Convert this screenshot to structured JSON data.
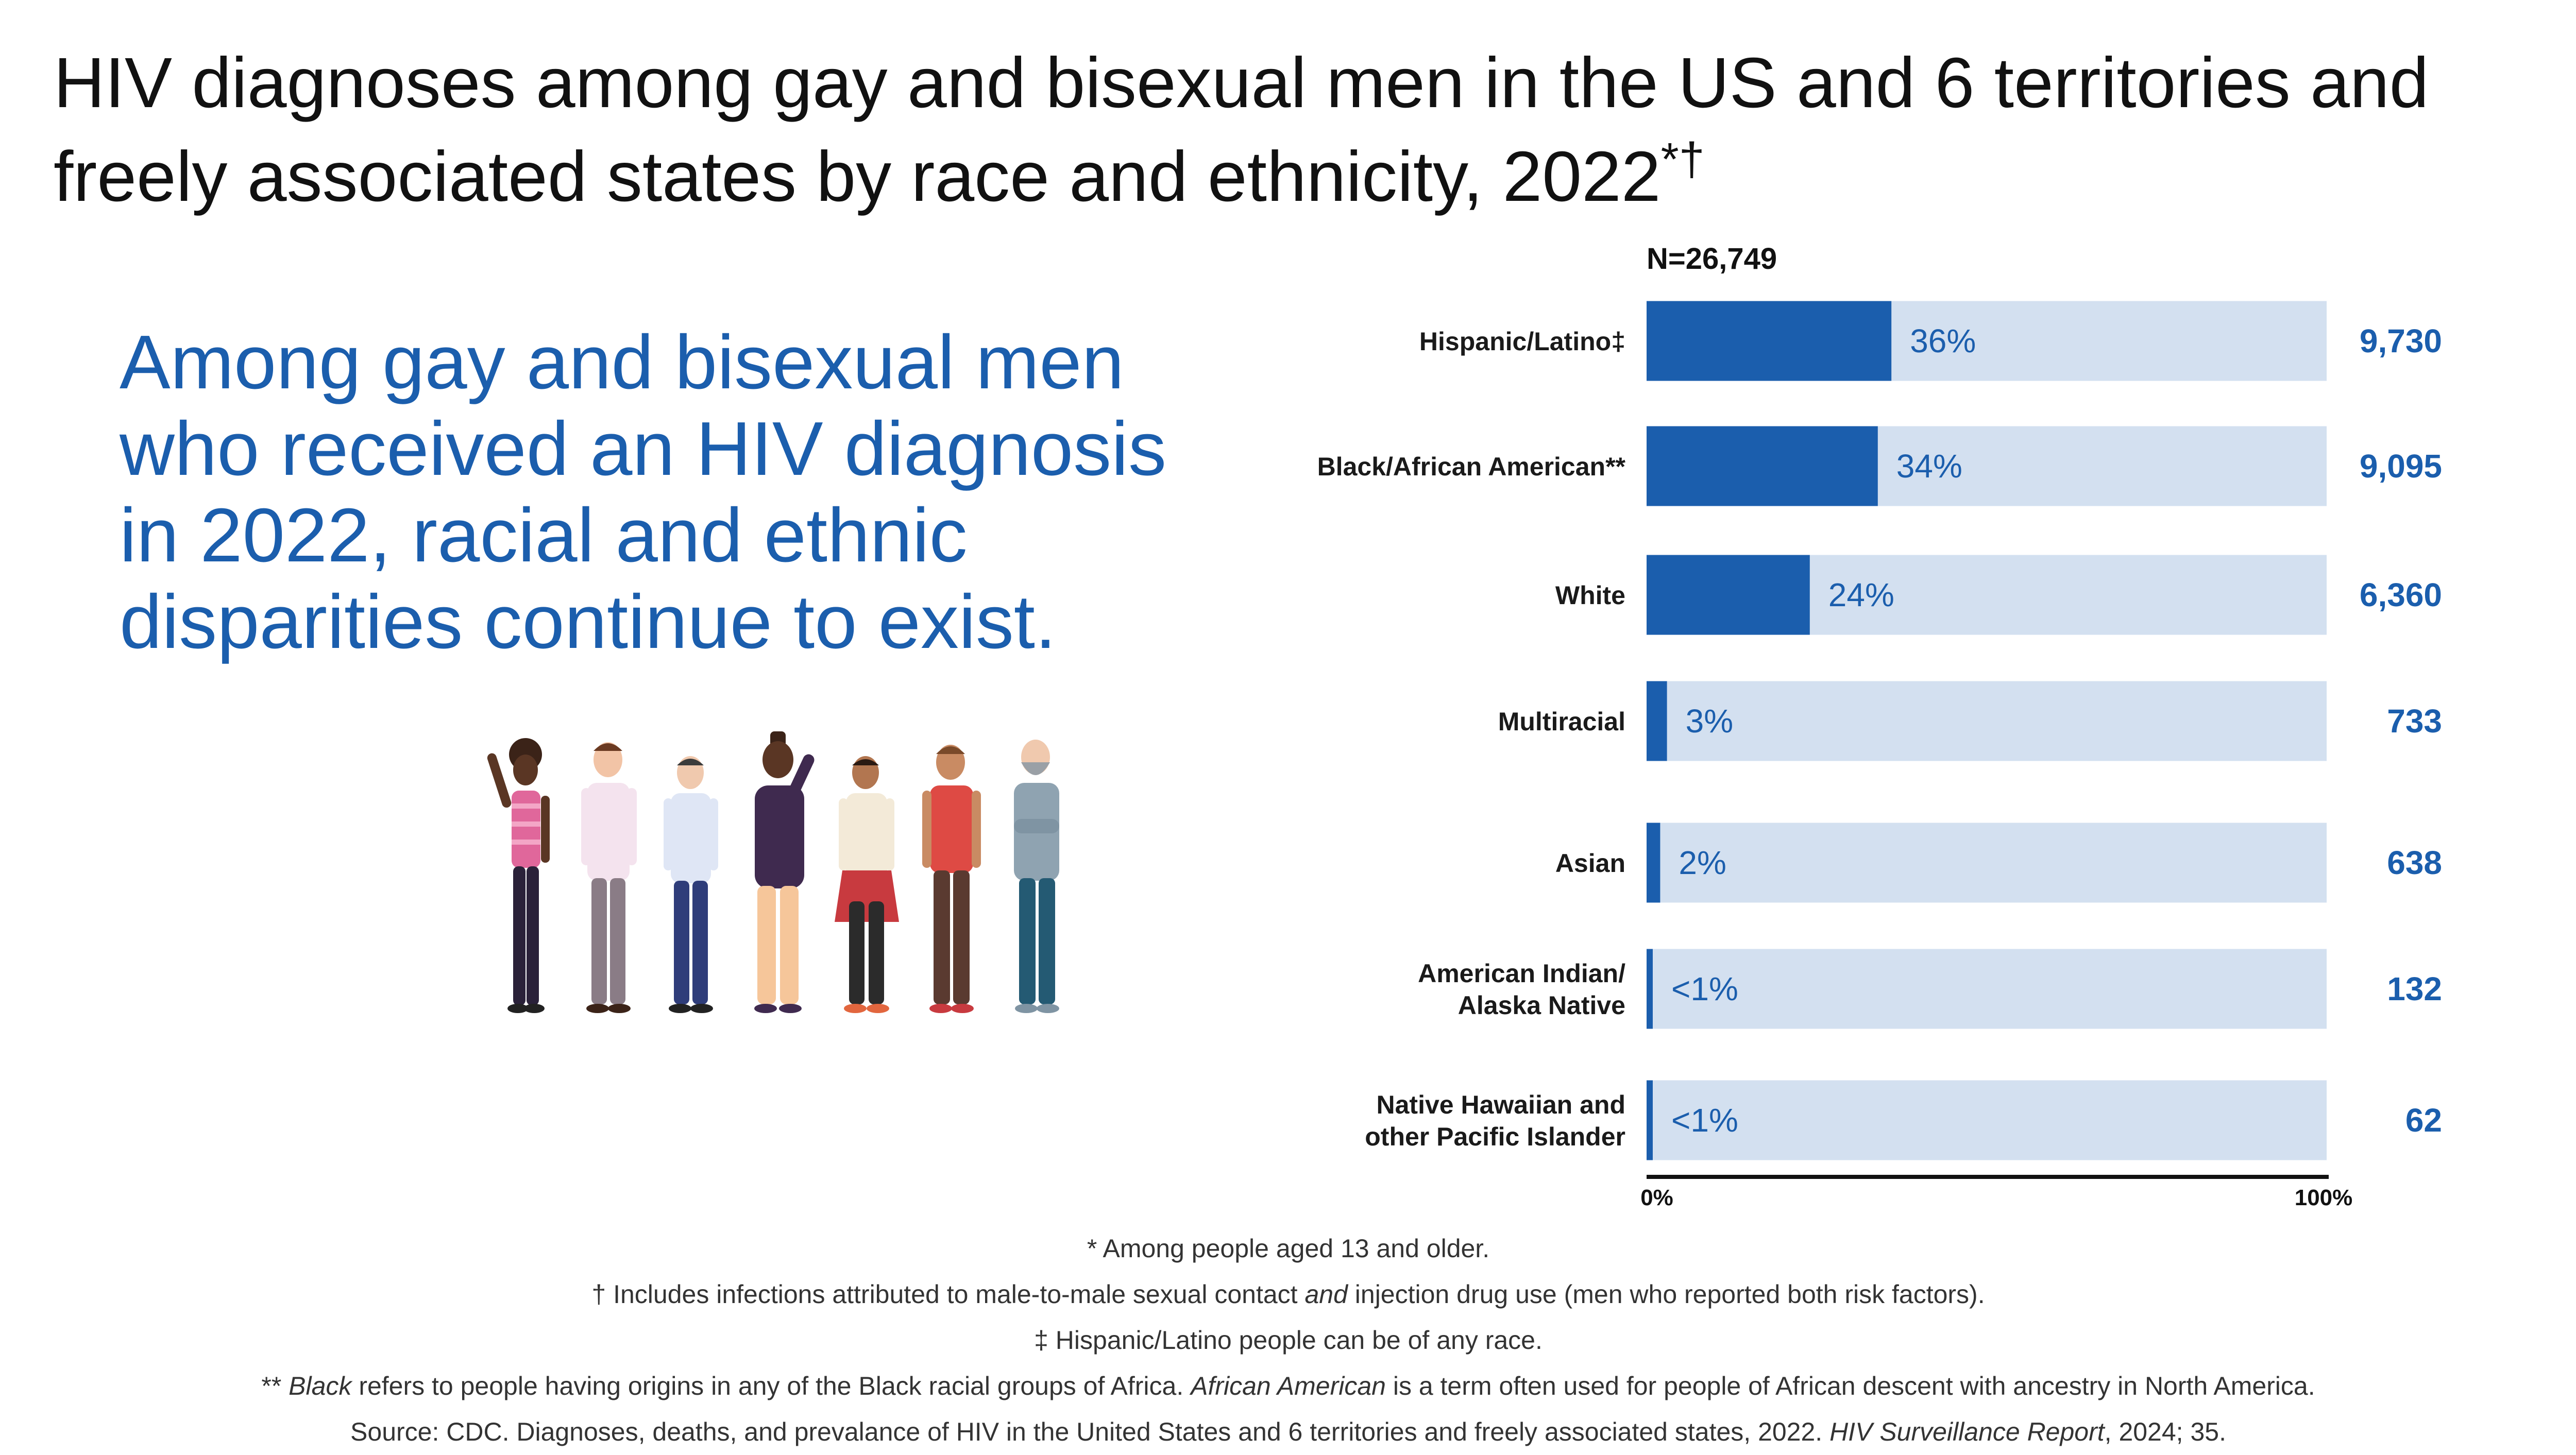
{
  "title": {
    "text": "HIV diagnoses among gay and bisexual men in the US and 6 territories and freely associated states by race and ethnicity, 2022",
    "marks": "*†"
  },
  "lead_text": "Among gay and bisexual men who received an HIV diagnosis in 2022, racial and ethnic disparities continue to exist.",
  "colors": {
    "bar": "#1b5ead",
    "track": "#d3e0f0",
    "accent_text": "#1b5ead"
  },
  "chart_data": {
    "type": "bar",
    "orientation": "horizontal",
    "title": "N=26,749",
    "categories": [
      "Hispanic/Latino‡",
      "Black/African American**",
      "White",
      "Multiracial",
      "Asian",
      "American Indian/ Alaska Native",
      "Native Hawaiian and other Pacific Islander"
    ],
    "values": [
      36,
      34,
      24,
      3,
      2,
      0.5,
      0.25
    ],
    "pct_labels": [
      "36%",
      "34%",
      "24%",
      "3%",
      "2%",
      "<1%",
      "<1%"
    ],
    "counts": [
      "9,730",
      "9,095",
      "6,360",
      "733",
      "638",
      "132",
      "62"
    ],
    "xlim": [
      0,
      100
    ],
    "ticks": [
      "0%",
      "100%"
    ],
    "xlabel": "",
    "ylabel": ""
  },
  "footnotes": {
    "f1": "* Among people aged 13 and older.",
    "f2_pre": "† Includes infections attributed to male-to-male sexual contact ",
    "f2_em": "and",
    "f2_post": " injection drug use (men who reported both risk factors).",
    "f3": "‡ Hispanic/Latino people can be of any race.",
    "f4_pre": "** ",
    "f4_em1": "Black",
    "f4_mid": " refers to people having origins in any of the Black racial groups of Africa. ",
    "f4_em2": "African American",
    "f4_post": " is a term often used for people of African descent with ancestry in North America.",
    "f5_pre": "Source: CDC. Diagnoses, deaths, and prevalance of HIV in the United States and 6 territories and freely associated states, 2022. ",
    "f5_em": "HIV Surveillance Report",
    "f5_post": ", 2024; 35."
  }
}
